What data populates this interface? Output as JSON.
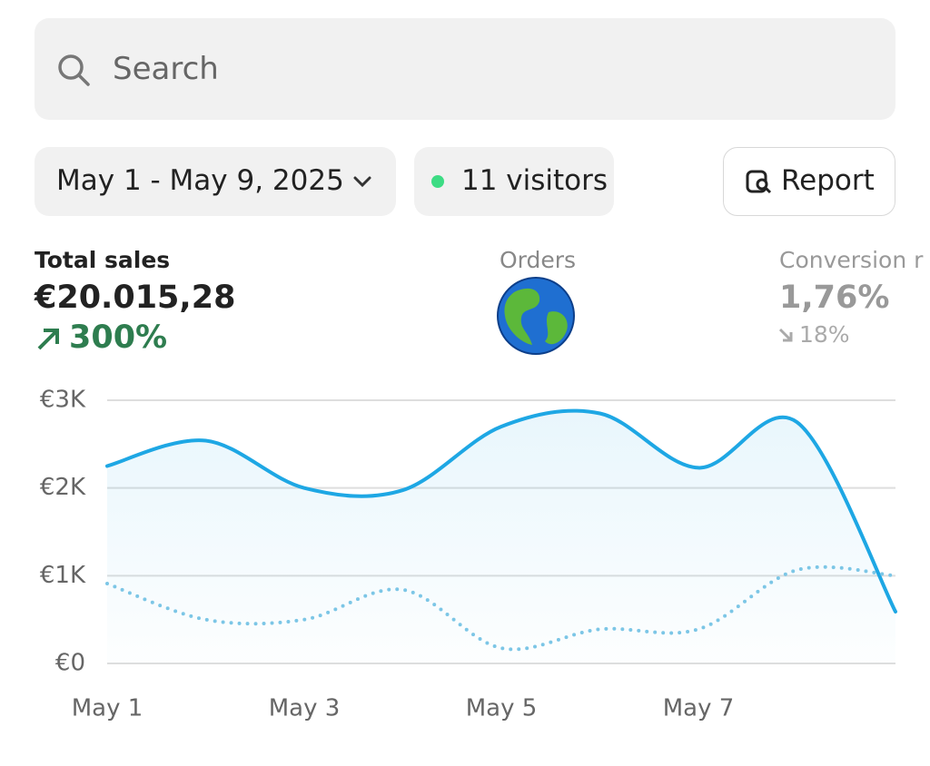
{
  "search": {
    "placeholder": "Search"
  },
  "filters": {
    "date_range": "May 1 - May 9, 2025",
    "visitors": "11 visitors",
    "report": "Report"
  },
  "metrics": [
    {
      "label": "Total sales",
      "value": "€20.015,28",
      "change": "300%"
    },
    {
      "label": "Orders"
    },
    {
      "label": "Conversion r",
      "value": "1,76%",
      "change": "18%"
    }
  ],
  "chart_data": {
    "type": "line",
    "categories": [
      "May 1",
      null,
      "May 3",
      null,
      "May 5",
      null,
      "May 7",
      null,
      null
    ],
    "series": [
      {
        "color": "#1ea7e4",
        "style": "solid",
        "area": true,
        "values": [
          2250,
          2540,
          2000,
          1975,
          2700,
          2850,
          2230,
          2750,
          590
        ]
      },
      {
        "color": "#7cc6e6",
        "style": "dotted",
        "values": [
          910,
          500,
          500,
          840,
          175,
          390,
          390,
          1065,
          1000
        ]
      }
    ],
    "ylim": [
      0,
      3000
    ],
    "yticks": [
      {
        "value": 0,
        "label": "€0"
      },
      {
        "value": 1000,
        "label": "€1K"
      },
      {
        "value": 2000,
        "label": "€2K"
      },
      {
        "value": 3000,
        "label": "€3K"
      }
    ],
    "grid": true
  }
}
